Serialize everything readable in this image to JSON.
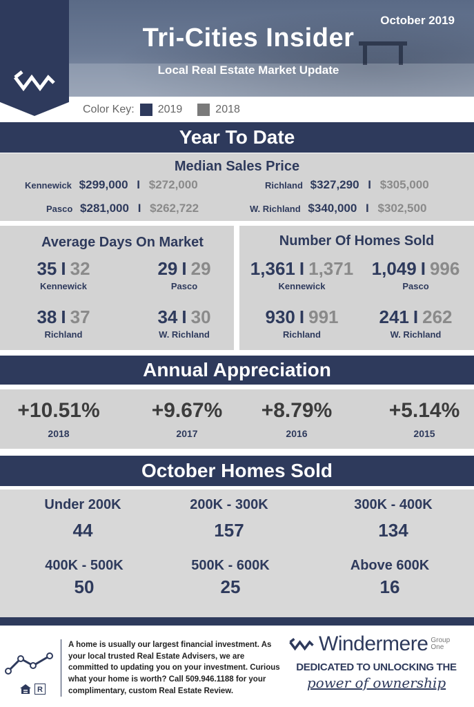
{
  "header": {
    "title": "Tri-Cities Insider",
    "subtitle": "Local Real Estate Market Update",
    "date": "October 2019"
  },
  "color_key": {
    "label": "Color Key:",
    "current": "2019",
    "previous": "2018",
    "current_color": "#2e3a5c",
    "previous_color": "#7a7a7a"
  },
  "ytd": {
    "title": "Year To Date",
    "median": {
      "title": "Median Sales Price",
      "rows": [
        {
          "city": "Kennewick",
          "v2019": "$299,000",
          "v2018": "$272,000"
        },
        {
          "city": "Richland",
          "v2019": "$327,290",
          "v2018": "$305,000"
        },
        {
          "city": "Pasco",
          "v2019": "$281,000",
          "v2018": "$262,722"
        },
        {
          "city": "W. Richland",
          "v2019": "$340,000",
          "v2018": "$302,500"
        }
      ],
      "separator": "I"
    },
    "days": {
      "title": "Average Days On Market",
      "items": [
        {
          "city": "Kennewick",
          "v2019": "35",
          "v2018": "32"
        },
        {
          "city": "Pasco",
          "v2019": "29",
          "v2018": "29"
        },
        {
          "city": "Richland",
          "v2019": "38",
          "v2018": "37"
        },
        {
          "city": "W. Richland",
          "v2019": "34",
          "v2018": "30"
        }
      ]
    },
    "sold": {
      "title": "Number Of Homes Sold",
      "items": [
        {
          "city": "Kennewick",
          "v2019": "1,361",
          "v2018": "1,371"
        },
        {
          "city": "Pasco",
          "v2019": "1,049",
          "v2018": "996"
        },
        {
          "city": "Richland",
          "v2019": "930",
          "v2018": "991"
        },
        {
          "city": "W. Richland",
          "v2019": "241",
          "v2018": "262"
        }
      ]
    }
  },
  "appreciation": {
    "title": "Annual Appreciation",
    "items": [
      {
        "pct": "+10.51%",
        "year": "2018"
      },
      {
        "pct": "+9.67%",
        "year": "2017"
      },
      {
        "pct": "+8.79%",
        "year": "2016"
      },
      {
        "pct": "+5.14%",
        "year": "2015"
      }
    ]
  },
  "october": {
    "title": "October Homes Sold",
    "items": [
      {
        "range": "Under 200K",
        "count": "44"
      },
      {
        "range": "200K - 300K",
        "count": "157"
      },
      {
        "range": "300K - 400K",
        "count": "134"
      },
      {
        "range": "400K - 500K",
        "count": "50"
      },
      {
        "range": "500K - 600K",
        "count": "25"
      },
      {
        "range": "Above 600K",
        "count": "16"
      }
    ]
  },
  "footer": {
    "text": "A home is usually our largest financial investment. As your local trusted Real Estate Advisers, we are committed to updating you on your investment. Curious what your home is worth? Call 509.946.1188 for your complimentary, custom Real Estate Review.",
    "brand": "Windermere",
    "group_line1": "Group",
    "group_line2": "One",
    "tagline": "DEDICATED TO UNLOCKING THE",
    "tagline_script": "power of ownership",
    "icons": [
      "trend-line-icon",
      "equal-housing-icon",
      "realtor-icon"
    ]
  }
}
